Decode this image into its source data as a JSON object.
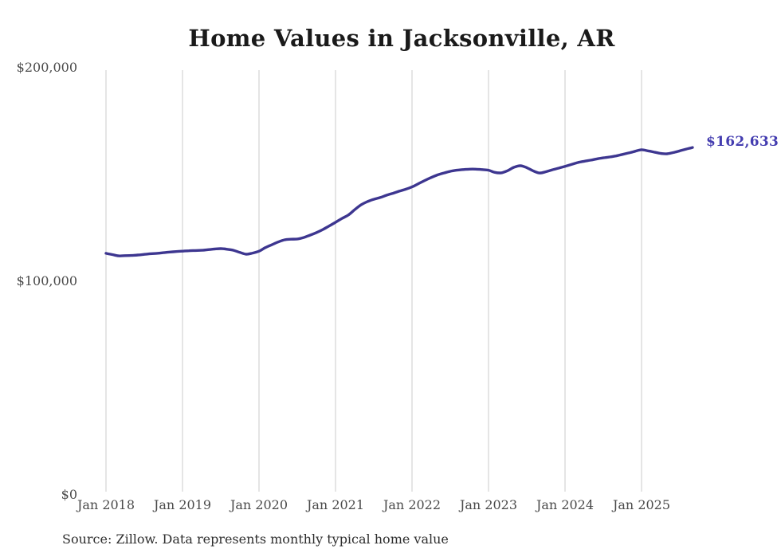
{
  "title": "Home Values in Jacksonville, AR",
  "end_label": "$162,633",
  "source_note": "Source: Zillow. Data represents monthly typical home value",
  "colors": {
    "line": "#3d3690",
    "end_label": "#443db0",
    "title": "#1a1a1a",
    "axis_labels": "#4a4a4a",
    "gridline": "#cbcbcb",
    "source": "#2e2e2e",
    "background": "#ffffff"
  },
  "chart_data": {
    "type": "line",
    "title": "Home Values in Jacksonville, AR",
    "xlabel": "",
    "ylabel": "",
    "frequency": "monthly",
    "grid": "vertical-only",
    "legend": "none",
    "ylim": [
      0,
      200000
    ],
    "y_ticks": [
      {
        "value": 0,
        "label": "$0"
      },
      {
        "value": 100000,
        "label": "$100,000"
      },
      {
        "value": 200000,
        "label": "$200,000"
      }
    ],
    "x_tick_labels": [
      "Jan 2018",
      "Jan 2019",
      "Jan 2020",
      "Jan 2021",
      "Jan 2022",
      "Jan 2023",
      "Jan 2024",
      "Jan 2025"
    ],
    "x": [
      "2018-01",
      "2018-02",
      "2018-03",
      "2018-04",
      "2018-05",
      "2018-06",
      "2018-07",
      "2018-08",
      "2018-09",
      "2018-10",
      "2018-11",
      "2018-12",
      "2019-01",
      "2019-02",
      "2019-03",
      "2019-04",
      "2019-05",
      "2019-06",
      "2019-07",
      "2019-08",
      "2019-09",
      "2019-10",
      "2019-11",
      "2019-12",
      "2020-01",
      "2020-02",
      "2020-03",
      "2020-04",
      "2020-05",
      "2020-06",
      "2020-07",
      "2020-08",
      "2020-09",
      "2020-10",
      "2020-11",
      "2020-12",
      "2021-01",
      "2021-02",
      "2021-03",
      "2021-04",
      "2021-05",
      "2021-06",
      "2021-07",
      "2021-08",
      "2021-09",
      "2021-10",
      "2021-11",
      "2021-12",
      "2022-01",
      "2022-02",
      "2022-03",
      "2022-04",
      "2022-05",
      "2022-06",
      "2022-07",
      "2022-08",
      "2022-09",
      "2022-10",
      "2022-11",
      "2022-12",
      "2023-01",
      "2023-02",
      "2023-03",
      "2023-04",
      "2023-05",
      "2023-06",
      "2023-07",
      "2023-08",
      "2023-09",
      "2023-10",
      "2023-11",
      "2023-12",
      "2024-01",
      "2024-02",
      "2024-03",
      "2024-04",
      "2024-05",
      "2024-06",
      "2024-07",
      "2024-08",
      "2024-09",
      "2024-10",
      "2024-11",
      "2024-12",
      "2025-01",
      "2025-02",
      "2025-03",
      "2025-04",
      "2025-05",
      "2025-06",
      "2025-07",
      "2025-08",
      "2025-09"
    ],
    "series": [
      {
        "name": "Typical home value",
        "values": [
          113100,
          112500,
          111900,
          112000,
          112100,
          112300,
          112600,
          112900,
          113100,
          113400,
          113700,
          113900,
          114100,
          114300,
          114400,
          114500,
          114800,
          115100,
          115300,
          115000,
          114500,
          113500,
          112700,
          113200,
          114100,
          115800,
          117100,
          118400,
          119400,
          119700,
          119800,
          120500,
          121600,
          122800,
          124200,
          125900,
          127600,
          129400,
          131000,
          133500,
          135800,
          137300,
          138400,
          139200,
          140300,
          141200,
          142200,
          143100,
          144200,
          145700,
          147200,
          148600,
          149800,
          150700,
          151500,
          152000,
          152300,
          152500,
          152500,
          152300,
          152000,
          151000,
          150800,
          151800,
          153400,
          154100,
          153200,
          151700,
          150700,
          151300,
          152200,
          153000,
          153800,
          154700,
          155600,
          156200,
          156700,
          157300,
          157800,
          158200,
          158700,
          159400,
          160100,
          160900,
          161600,
          161100,
          160500,
          159900,
          159700,
          160300,
          161100,
          161900,
          162633
        ]
      }
    ],
    "end_value": 162633,
    "end_value_label": "$162,633"
  }
}
